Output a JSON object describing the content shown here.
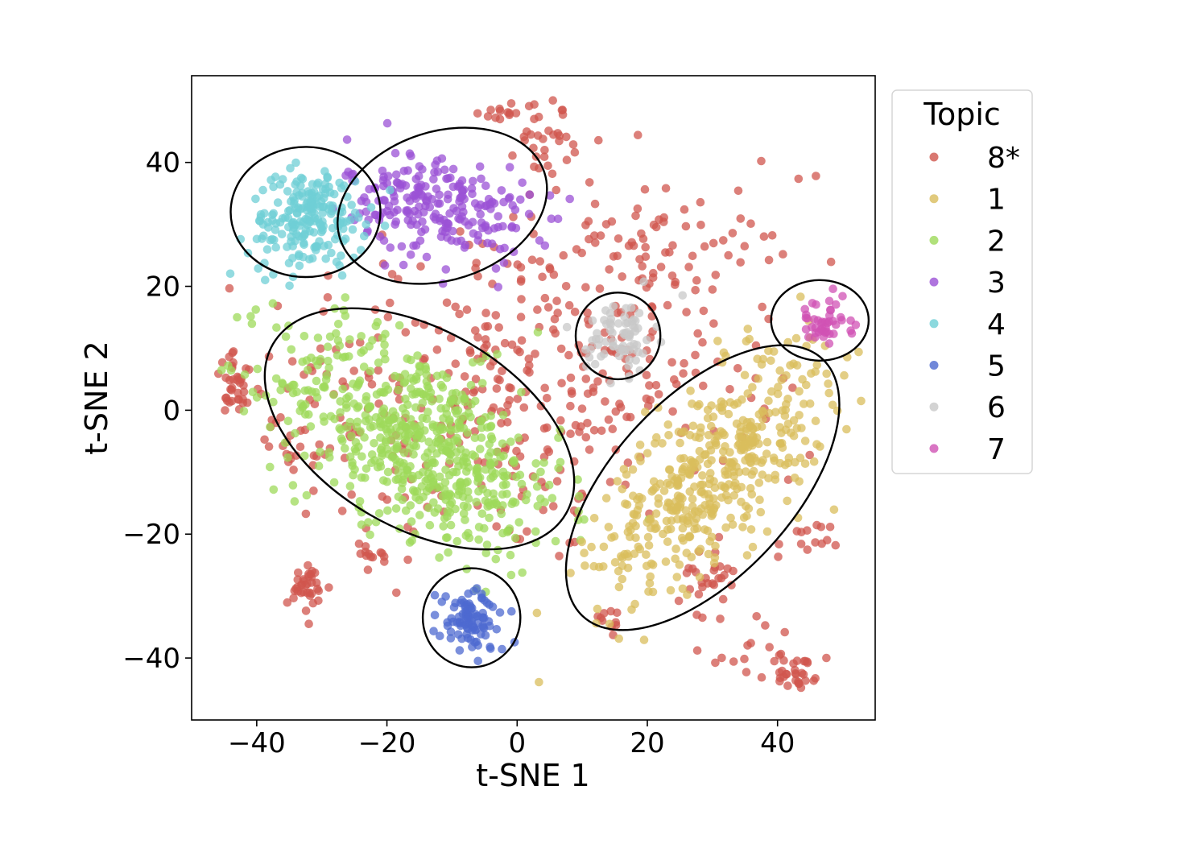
{
  "chart_data": {
    "type": "scatter",
    "title": "",
    "xlabel": "t-SNE 1",
    "ylabel": "t-SNE 2",
    "xlim": [
      -50,
      55
    ],
    "ylim": [
      -50,
      54
    ],
    "xticks": [
      -40,
      -20,
      0,
      20,
      40
    ],
    "yticks": [
      -40,
      -20,
      0,
      20,
      40
    ],
    "xtick_labels": [
      "−40",
      "−20",
      "0",
      "20",
      "40"
    ],
    "ytick_labels": [
      "−40",
      "−20",
      "0",
      "20",
      "40"
    ],
    "grid": false,
    "legend": {
      "title": "Topic",
      "placement": "outside-right",
      "entries": [
        {
          "label": "8*",
          "color": "#d0564d"
        },
        {
          "label": "1",
          "color": "#d9bd5c"
        },
        {
          "label": "2",
          "color": "#9ed95a"
        },
        {
          "label": "3",
          "color": "#9b51d6"
        },
        {
          "label": "4",
          "color": "#6fcfd6"
        },
        {
          "label": "5",
          "color": "#4d6ad0"
        },
        {
          "label": "6",
          "color": "#c8c8c8"
        },
        {
          "label": "7",
          "color": "#d052b4"
        }
      ]
    },
    "series": [
      {
        "name": "8*",
        "color": "#d0564d",
        "distribution": "scattered background",
        "clusters": [
          {
            "cx": -5,
            "cy": 3,
            "sx": 18,
            "sy": 14,
            "n": 330
          },
          {
            "cx": 20,
            "cy": 14,
            "sx": 12,
            "sy": 12,
            "n": 120
          },
          {
            "cx": -43,
            "cy": 4,
            "sx": 1.8,
            "sy": 2.5,
            "n": 35
          },
          {
            "cx": -32,
            "cy": -29,
            "sx": 1.6,
            "sy": 2.0,
            "n": 35
          },
          {
            "cx": 43,
            "cy": -42,
            "sx": 1.5,
            "sy": 1.5,
            "n": 30
          },
          {
            "cx": 29,
            "cy": -27,
            "sx": 2.0,
            "sy": 2.0,
            "n": 25
          },
          {
            "cx": 5,
            "cy": 44,
            "sx": 2.5,
            "sy": 3,
            "n": 30
          },
          {
            "cx": -1,
            "cy": 48,
            "sx": 2.5,
            "sy": 1,
            "n": 15
          },
          {
            "cx": 20,
            "cy": 28,
            "sx": 4,
            "sy": 3,
            "n": 25
          },
          {
            "cx": 36,
            "cy": -38,
            "sx": 4,
            "sy": 3,
            "n": 18
          },
          {
            "cx": 44,
            "cy": -22,
            "sx": 2,
            "sy": 2,
            "n": 14
          },
          {
            "cx": -23,
            "cy": -24,
            "sx": 2,
            "sy": 1.5,
            "n": 12
          },
          {
            "cx": -34,
            "cy": -7,
            "sx": 2,
            "sy": 2,
            "n": 14
          },
          {
            "cx": 14,
            "cy": -34,
            "sx": 1.5,
            "sy": 1.5,
            "n": 10
          }
        ]
      },
      {
        "name": "1",
        "color": "#d9bd5c",
        "distribution": "diagonal cloud",
        "clusters": [
          {
            "cx": 30,
            "cy": -10,
            "sx": 9,
            "sy": 10,
            "n": 470,
            "rho": 0.7
          }
        ]
      },
      {
        "name": "2",
        "color": "#9ed95a",
        "distribution": "diagonal cloud",
        "clusters": [
          {
            "cx": -15,
            "cy": -5,
            "sx": 11,
            "sy": 9,
            "n": 620,
            "rho": -0.55
          }
        ]
      },
      {
        "name": "3",
        "color": "#9b51d6",
        "distribution": "compact cloud",
        "clusters": [
          {
            "cx": -12,
            "cy": 33,
            "sx": 7,
            "sy": 4.5,
            "n": 230,
            "rho": -0.3
          }
        ]
      },
      {
        "name": "4",
        "color": "#6fcfd6",
        "distribution": "compact cloud",
        "clusters": [
          {
            "cx": -32,
            "cy": 31,
            "sx": 4.5,
            "sy": 4,
            "n": 210,
            "rho": 0.2
          }
        ]
      },
      {
        "name": "5",
        "color": "#4d6ad0",
        "distribution": "compact cloud",
        "clusters": [
          {
            "cx": -7,
            "cy": -34,
            "sx": 2.6,
            "sy": 2.6,
            "n": 95
          }
        ]
      },
      {
        "name": "6",
        "color": "#c8c8c8",
        "distribution": "compact cloud",
        "clusters": [
          {
            "cx": 16,
            "cy": 12,
            "sx": 2.6,
            "sy": 3.0,
            "n": 75
          }
        ]
      },
      {
        "name": "7",
        "color": "#d052b4",
        "distribution": "compact cloud",
        "clusters": [
          {
            "cx": 47,
            "cy": 14,
            "sx": 2.2,
            "sy": 2.0,
            "n": 45
          }
        ]
      }
    ],
    "annotations": [
      {
        "type": "ellipse",
        "target": "4",
        "cx": -32.5,
        "cy": 32,
        "rx": 11.5,
        "ry": 10.5,
        "angle": 0
      },
      {
        "type": "ellipse",
        "target": "3",
        "cx": -11.5,
        "cy": 33,
        "rx": 16.5,
        "ry": 12,
        "angle": 18
      },
      {
        "type": "ellipse",
        "target": "2",
        "cx": -15,
        "cy": -3,
        "rx": 26,
        "ry": 16,
        "angle": -30
      },
      {
        "type": "ellipse",
        "target": "6",
        "cx": 15.5,
        "cy": 12,
        "rx": 6.5,
        "ry": 7,
        "angle": 0
      },
      {
        "type": "ellipse",
        "target": "7",
        "cx": 46.5,
        "cy": 14.5,
        "rx": 7.5,
        "ry": 6.5,
        "angle": 0
      },
      {
        "type": "ellipse",
        "target": "1",
        "cx": 28.5,
        "cy": -12.5,
        "rx": 27,
        "ry": 14.5,
        "angle": 47
      },
      {
        "type": "ellipse",
        "target": "5",
        "cx": -7,
        "cy": -33.5,
        "rx": 7.5,
        "ry": 8,
        "angle": 0
      }
    ]
  }
}
